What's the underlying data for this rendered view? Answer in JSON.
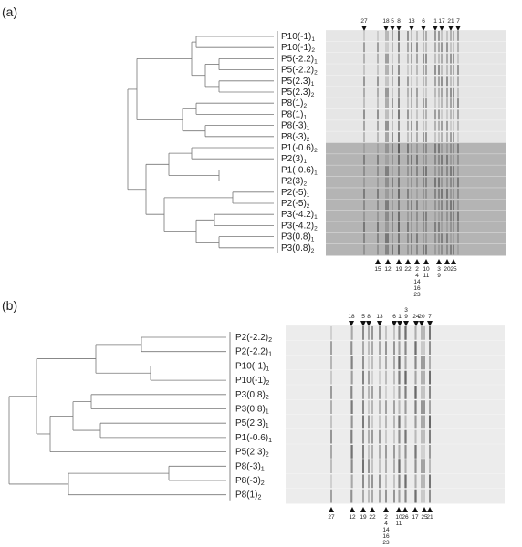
{
  "panel_a": {
    "label": "(a)",
    "lanes": [
      {
        "name": "P10(-1)",
        "sub": "1"
      },
      {
        "name": "P10(-1)",
        "sub": "2"
      },
      {
        "name": "P5(-2.2)",
        "sub": "1"
      },
      {
        "name": "P5(-2.2)",
        "sub": "2"
      },
      {
        "name": "P5(2.3)",
        "sub": "1"
      },
      {
        "name": "P5(2.3)",
        "sub": "2"
      },
      {
        "name": "P8(1)",
        "sub": "2"
      },
      {
        "name": "P8(1)",
        "sub": "1"
      },
      {
        "name": "P8(-3)",
        "sub": "1"
      },
      {
        "name": "P8(-3)",
        "sub": "2"
      },
      {
        "name": "P1(-0.6)",
        "sub": "2"
      },
      {
        "name": "P2(3)",
        "sub": "1"
      },
      {
        "name": "P1(-0.6)",
        "sub": "1"
      },
      {
        "name": "P2(3)",
        "sub": "2"
      },
      {
        "name": "P2(-5)",
        "sub": "1"
      },
      {
        "name": "P2(-5)",
        "sub": "2"
      },
      {
        "name": "P3(-4.2)",
        "sub": "1"
      },
      {
        "name": "P3(-4.2)",
        "sub": "2"
      },
      {
        "name": "P3(0.8)",
        "sub": "1"
      },
      {
        "name": "P3(0.8)",
        "sub": "2"
      }
    ],
    "top_markers": [
      [
        "27"
      ],
      [
        "18"
      ],
      [
        "5"
      ],
      [
        "8"
      ],
      [
        "13"
      ],
      [
        "6"
      ],
      [
        "1"
      ],
      [
        "17"
      ],
      [
        "21"
      ],
      [
        "7"
      ]
    ],
    "bottom_markers": [
      [
        "15"
      ],
      [
        "12"
      ],
      [
        "19"
      ],
      [
        "22"
      ],
      [
        "2",
        "4",
        "14",
        "16",
        "23"
      ],
      [
        "10",
        "11"
      ],
      [
        "3",
        "9"
      ],
      [
        "20"
      ],
      [
        "25"
      ]
    ]
  },
  "panel_b": {
    "label": "(b)",
    "lanes": [
      {
        "name": "P2(-2.2)",
        "sub": "2"
      },
      {
        "name": "P2(-2.2)",
        "sub": "1"
      },
      {
        "name": "P10(-1)",
        "sub": "1"
      },
      {
        "name": "P10(-1)",
        "sub": "2"
      },
      {
        "name": "P3(0.8)",
        "sub": "2"
      },
      {
        "name": "P3(0.8)",
        "sub": "1"
      },
      {
        "name": "P5(2.3)",
        "sub": "1"
      },
      {
        "name": "P1(-0.6)",
        "sub": "1"
      },
      {
        "name": "P5(2.3)",
        "sub": "2"
      },
      {
        "name": "P8(-3)",
        "sub": "1"
      },
      {
        "name": "P8(-3)",
        "sub": "2"
      },
      {
        "name": "P8(1)",
        "sub": "2"
      }
    ],
    "top_markers": [
      [
        "18"
      ],
      [
        "5"
      ],
      [
        "8"
      ],
      [
        "13"
      ],
      [
        "6"
      ],
      [
        "1"
      ],
      [
        "3",
        "9"
      ],
      [
        "24"
      ],
      [
        "20"
      ],
      [
        "7"
      ]
    ],
    "bottom_markers": [
      [
        "27"
      ],
      [
        "12"
      ],
      [
        "19"
      ],
      [
        "22"
      ],
      [
        "2",
        "4",
        "14",
        "16",
        "23"
      ],
      [
        "10",
        "11"
      ],
      [
        "26"
      ],
      [
        "17"
      ],
      [
        "25"
      ],
      [
        "21"
      ]
    ]
  }
}
